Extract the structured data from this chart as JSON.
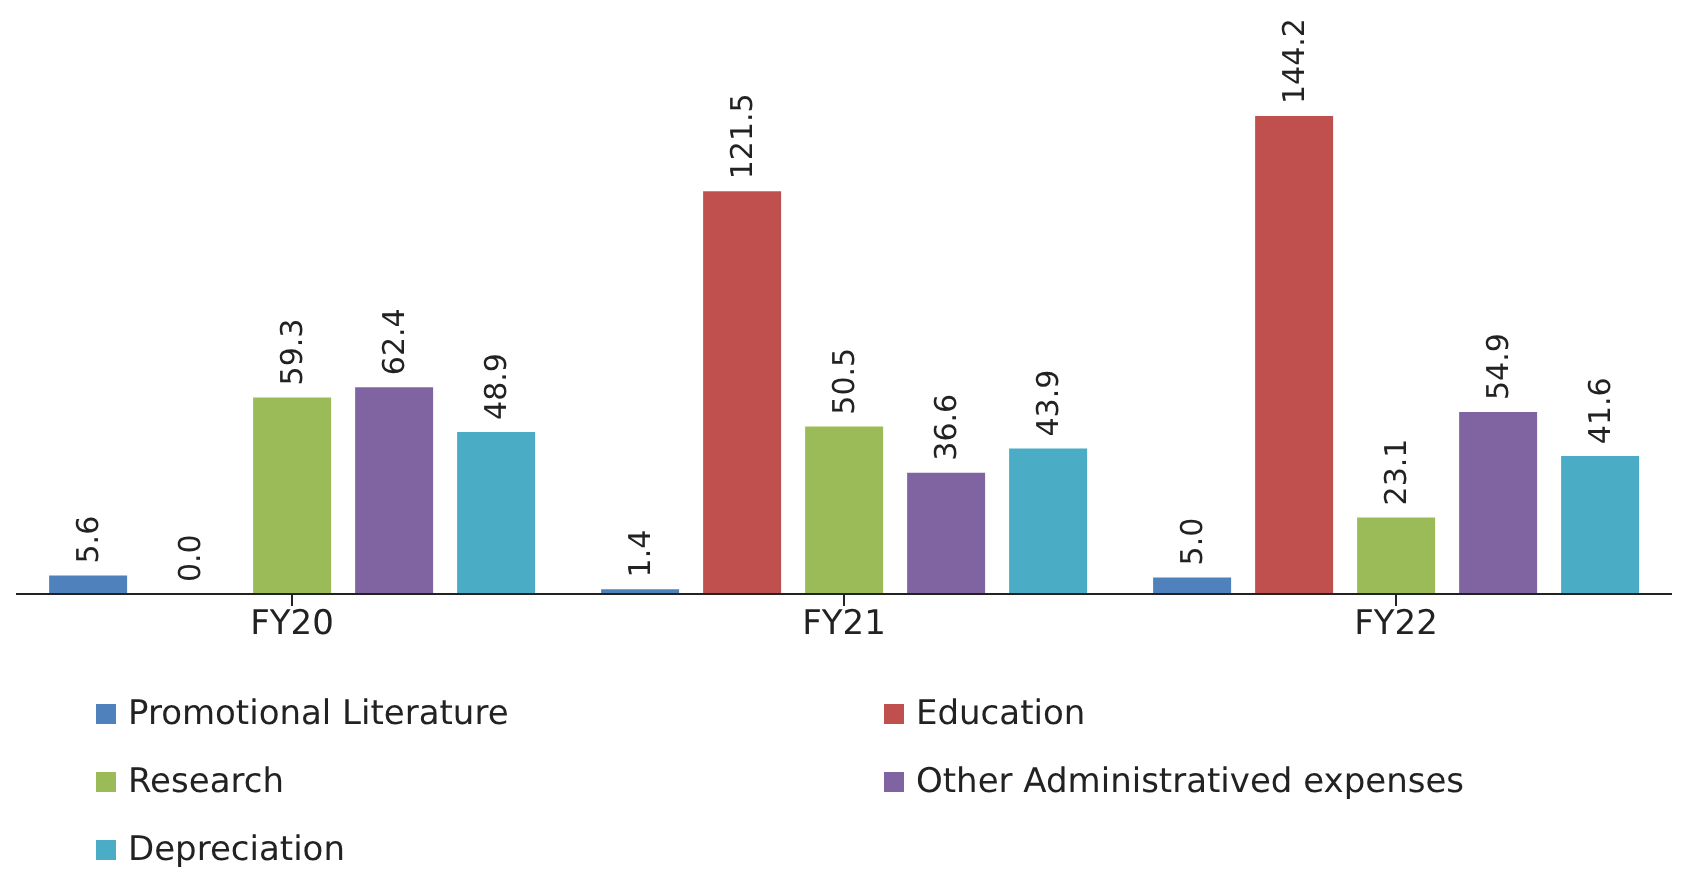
{
  "chart_data": {
    "type": "bar",
    "categories": [
      "FY20",
      "FY21",
      "FY22"
    ],
    "series": [
      {
        "name": "Promotional Literature",
        "color": "#4f81bd",
        "values": [
          5.6,
          1.4,
          5.0
        ],
        "value_labels": [
          "5.6",
          "1.4",
          "5.0"
        ]
      },
      {
        "name": "Education",
        "color": "#c0504d",
        "values": [
          0.0,
          121.5,
          144.2
        ],
        "value_labels": [
          "0.0",
          "121.5",
          "144.2"
        ]
      },
      {
        "name": "Research",
        "color": "#9bbb59",
        "values": [
          59.3,
          50.5,
          23.1
        ],
        "value_labels": [
          "59.3",
          "50.5",
          "23.1"
        ]
      },
      {
        "name": "Other Administratived expenses",
        "color": "#8064a2",
        "values": [
          62.4,
          36.6,
          54.9
        ],
        "value_labels": [
          "62.4",
          "36.6",
          "54.9"
        ]
      },
      {
        "name": "Depreciation",
        "color": "#4bacc6",
        "values": [
          48.9,
          43.9,
          41.6
        ],
        "value_labels": [
          "48.9",
          "43.9",
          "41.6"
        ]
      }
    ],
    "legend": "bottom",
    "grid": false,
    "tick_labels": "x"
  }
}
